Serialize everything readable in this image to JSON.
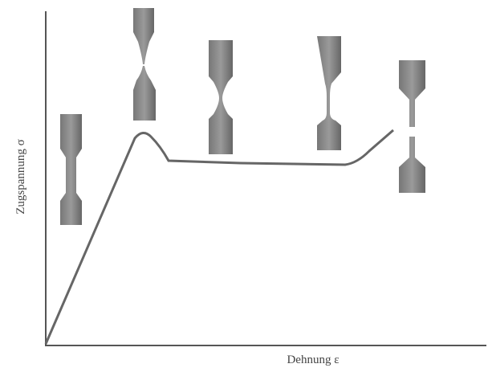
{
  "y_axis_label": "Zugspannung σ",
  "x_axis_label": "Dehnung ε"
}
